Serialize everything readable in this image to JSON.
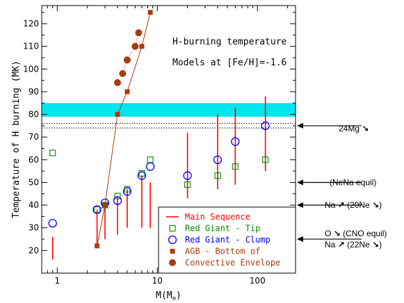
{
  "chart_data": {
    "type": "scatter",
    "xlabel_main": "M(M",
    "xlabel_sub": "⊙",
    "xlabel_close": ")",
    "ylabel": "Temperature of H burning (MK)",
    "xscale": "log",
    "xlim": [
      0.7,
      240
    ],
    "ylim": [
      10,
      128
    ],
    "title_lines": [
      "H-burning temperature",
      "Models at [Fe/H]=-1.6"
    ],
    "xticks": [
      {
        "value": 1,
        "label": "1"
      },
      {
        "value": 10,
        "label": "10"
      },
      {
        "value": 100,
        "label": "100"
      }
    ],
    "yticks": [
      20,
      30,
      40,
      50,
      60,
      70,
      80,
      90,
      100,
      110,
      120
    ],
    "cyan_band": {
      "y0": 79,
      "y1": 85,
      "color": "#00e5ee"
    },
    "dotted_lines": [
      74,
      76
    ],
    "colors": {
      "main": "#ff0000",
      "tip": "#008800",
      "clump": "#0000ff",
      "agb": "#a83c10"
    },
    "series": [
      {
        "name": "Main Sequence",
        "kind": "range",
        "points": [
          [
            0.9,
            16,
            26
          ],
          [
            2.5,
            22,
            38
          ],
          [
            3,
            25,
            41
          ],
          [
            4,
            27,
            44
          ],
          [
            5,
            30,
            47
          ],
          [
            7,
            30,
            53
          ],
          [
            8.5,
            30,
            50
          ],
          [
            20,
            43,
            72
          ],
          [
            40,
            47,
            80
          ],
          [
            60,
            49,
            83
          ],
          [
            120,
            55,
            88
          ]
        ]
      },
      {
        "name": "Red Giant - Tip",
        "kind": "square",
        "points": [
          [
            0.9,
            63
          ],
          [
            2.5,
            38
          ],
          [
            3,
            40
          ],
          [
            4,
            44
          ],
          [
            5,
            47
          ],
          [
            7,
            54
          ],
          [
            8.5,
            60
          ],
          [
            20,
            49
          ],
          [
            40,
            53
          ],
          [
            60,
            57
          ],
          [
            120,
            60
          ]
        ]
      },
      {
        "name": "Red Giant - Clump",
        "kind": "circle",
        "points": [
          [
            0.9,
            32
          ],
          [
            2.5,
            38
          ],
          [
            3,
            41
          ],
          [
            4,
            42
          ],
          [
            5,
            46
          ],
          [
            7,
            53
          ],
          [
            8.5,
            57
          ],
          [
            20,
            53
          ],
          [
            40,
            60
          ],
          [
            60,
            68
          ],
          [
            120,
            75
          ]
        ]
      },
      {
        "name": "AGB - Bottom of",
        "kind": "filled-square",
        "points": [
          [
            2.5,
            22
          ],
          [
            3,
            40
          ],
          [
            4,
            80
          ],
          [
            5,
            90
          ],
          [
            7,
            110
          ],
          [
            8.5,
            125
          ]
        ]
      },
      {
        "name": "Convective Envelope",
        "kind": "filled-circle",
        "points": [
          [
            4,
            94
          ],
          [
            4.5,
            98
          ],
          [
            5,
            104
          ],
          [
            6,
            110
          ],
          [
            6.5,
            116
          ]
        ]
      }
    ],
    "legend_labels": [
      "Main Sequence",
      "Red Giant - Tip",
      "Red Giant - Clump",
      "AGB - Bottom of",
      "Convective Envelope"
    ],
    "annotations": [
      {
        "y": 75,
        "parts": [
          {
            "t": "24Mg "
          },
          {
            "t": "↘",
            "bold": true
          }
        ]
      },
      {
        "y": 50,
        "parts": [
          {
            "t": "(NeNa equil)"
          }
        ]
      },
      {
        "y": 40,
        "parts": [
          {
            "t": "Na "
          },
          {
            "t": "↗",
            "bold": true
          },
          {
            "t": " (20Ne "
          },
          {
            "t": "↘",
            "bold": true
          },
          {
            "t": ")"
          }
        ]
      },
      {
        "y": 25,
        "parts": [
          {
            "t": "O "
          },
          {
            "t": "↘",
            "bold": true
          },
          {
            "t": "    (CNO equil)"
          }
        ],
        "dy": -8
      },
      {
        "y": 25,
        "parts": [
          {
            "t": "Na "
          },
          {
            "t": "↗",
            "bold": true
          },
          {
            "t": " (22Ne "
          },
          {
            "t": "↘",
            "bold": true
          },
          {
            "t": ")"
          }
        ],
        "dy": 8
      }
    ]
  }
}
